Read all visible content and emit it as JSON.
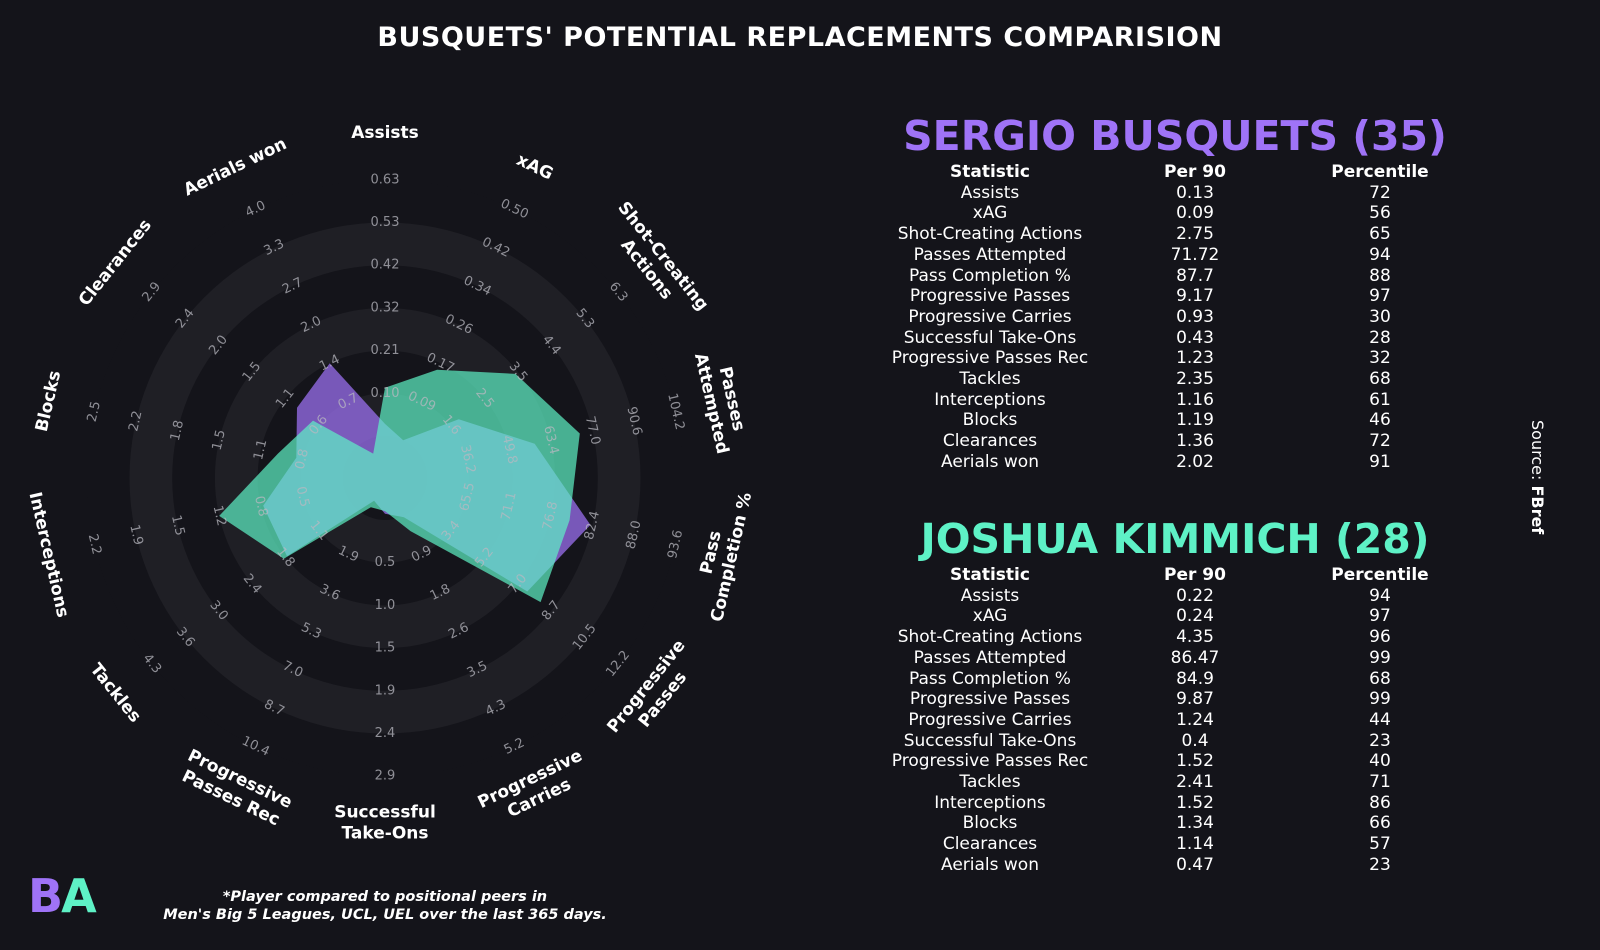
{
  "title": "BUSQUETS' POTENTIAL REPLACEMENTS COMPARISION",
  "source_prefix": "Source: ",
  "source_name": "FBref",
  "logo_b": "B",
  "logo_a": "A",
  "footnote_line1": "*Player compared to positional peers in",
  "footnote_line2": "Men's Big 5 Leagues, UCL, UEL over the last 365 days.",
  "colors": {
    "background": "#14141a",
    "ring": "#1f1f25",
    "player1": "#9f73f7",
    "player2": "#5ef2c6"
  },
  "table_headers": {
    "statistic": "Statistic",
    "per90": "Per 90",
    "percentile": "Percentile"
  },
  "players": [
    {
      "name": "SERGIO BUSQUETS (35)",
      "color": "#9f73f7",
      "stats": [
        {
          "statistic": "Assists",
          "per90": "0.13",
          "percentile": "72"
        },
        {
          "statistic": "xAG",
          "per90": "0.09",
          "percentile": "56"
        },
        {
          "statistic": "Shot-Creating Actions",
          "per90": "2.75",
          "percentile": "65"
        },
        {
          "statistic": "Passes Attempted",
          "per90": "71.72",
          "percentile": "94"
        },
        {
          "statistic": "Pass Completion %",
          "per90": "87.7",
          "percentile": "88"
        },
        {
          "statistic": "Progressive Passes",
          "per90": "9.17",
          "percentile": "97"
        },
        {
          "statistic": "Progressive Carries",
          "per90": "0.93",
          "percentile": "30"
        },
        {
          "statistic": "Successful Take-Ons",
          "per90": "0.43",
          "percentile": "28"
        },
        {
          "statistic": "Progressive Passes Rec",
          "per90": "1.23",
          "percentile": "32"
        },
        {
          "statistic": "Tackles",
          "per90": "2.35",
          "percentile": "68"
        },
        {
          "statistic": "Interceptions",
          "per90": "1.16",
          "percentile": "61"
        },
        {
          "statistic": "Blocks",
          "per90": "1.19",
          "percentile": "46"
        },
        {
          "statistic": "Clearances",
          "per90": "1.36",
          "percentile": "72"
        },
        {
          "statistic": "Aerials won",
          "per90": "2.02",
          "percentile": "91"
        }
      ]
    },
    {
      "name": "JOSHUA KIMMICH (28)",
      "color": "#5ef2c6",
      "stats": [
        {
          "statistic": "Assists",
          "per90": "0.22",
          "percentile": "94"
        },
        {
          "statistic": "xAG",
          "per90": "0.24",
          "percentile": "97"
        },
        {
          "statistic": "Shot-Creating Actions",
          "per90": "4.35",
          "percentile": "96"
        },
        {
          "statistic": "Passes Attempted",
          "per90": "86.47",
          "percentile": "99"
        },
        {
          "statistic": "Pass Completion %",
          "per90": "84.9",
          "percentile": "68"
        },
        {
          "statistic": "Progressive Passes",
          "per90": "9.87",
          "percentile": "99"
        },
        {
          "statistic": "Progressive Carries",
          "per90": "1.24",
          "percentile": "44"
        },
        {
          "statistic": "Successful Take-Ons",
          "per90": "0.4",
          "percentile": "23"
        },
        {
          "statistic": "Progressive Passes Rec",
          "per90": "1.52",
          "percentile": "40"
        },
        {
          "statistic": "Tackles",
          "per90": "2.41",
          "percentile": "71"
        },
        {
          "statistic": "Interceptions",
          "per90": "1.52",
          "percentile": "86"
        },
        {
          "statistic": "Blocks",
          "per90": "1.34",
          "percentile": "66"
        },
        {
          "statistic": "Clearances",
          "per90": "1.14",
          "percentile": "57"
        },
        {
          "statistic": "Aerials won",
          "per90": "0.47",
          "percentile": "23"
        }
      ]
    }
  ],
  "chart_data": {
    "type": "radar",
    "title": "BUSQUETS' POTENTIAL REPLACEMENTS COMPARISION",
    "axes": [
      {
        "label": "Assists",
        "min": 0.0,
        "max": 0.63,
        "ticks": [
          "0.10",
          "0.21",
          "0.32",
          "0.42",
          "0.53",
          "0.63"
        ]
      },
      {
        "label": "xAG",
        "min": 0.0,
        "max": 0.5,
        "ticks": [
          "0.09",
          "0.17",
          "0.26",
          "0.34",
          "0.42",
          "0.50"
        ]
      },
      {
        "label": "Shot-Creating Actions",
        "min": 0.0,
        "max": 6.3,
        "ticks": [
          "1.6",
          "2.5",
          "3.5",
          "4.4",
          "5.3",
          "6.3"
        ]
      },
      {
        "label": "Passes Attempted",
        "min": 0.0,
        "max": 104.2,
        "ticks": [
          "36.2",
          "49.8",
          "63.4",
          "77.0",
          "90.6",
          "104.2"
        ]
      },
      {
        "label": "Pass Completion %",
        "min": 0.0,
        "max": 93.6,
        "ticks": [
          "65.5",
          "71.1",
          "76.8",
          "82.4",
          "88.0",
          "93.6"
        ]
      },
      {
        "label": "Progressive Passes",
        "min": 0.0,
        "max": 12.2,
        "ticks": [
          "3.4",
          "5.2",
          "7.0",
          "8.7",
          "10.5",
          "12.2"
        ]
      },
      {
        "label": "Progressive Carries",
        "min": 0.0,
        "max": 5.2,
        "ticks": [
          "0.9",
          "1.8",
          "2.6",
          "3.5",
          "4.3",
          "5.2"
        ]
      },
      {
        "label": "Successful Take-Ons",
        "min": 0.0,
        "max": 2.9,
        "ticks": [
          "0.5",
          "1.0",
          "1.5",
          "1.9",
          "2.4",
          "2.9"
        ]
      },
      {
        "label": "Progressive Passes Rec",
        "min": 0.0,
        "max": 10.4,
        "ticks": [
          "1.9",
          "3.6",
          "5.3",
          "7.0",
          "8.7",
          "10.4"
        ]
      },
      {
        "label": "Tackles",
        "min": 0.0,
        "max": 4.3,
        "ticks": [
          "1.1",
          "1.8",
          "2.4",
          "3.0",
          "3.6",
          "4.3"
        ]
      },
      {
        "label": "Interceptions",
        "min": 0.0,
        "max": 2.2,
        "ticks": [
          "0.5",
          "0.8",
          "1.2",
          "1.5",
          "1.9",
          "2.2"
        ]
      },
      {
        "label": "Blocks",
        "min": 0.0,
        "max": 2.5,
        "ticks": [
          "0.8",
          "1.1",
          "1.5",
          "1.8",
          "2.2",
          "2.5"
        ]
      },
      {
        "label": "Clearances",
        "min": 0.0,
        "max": 2.9,
        "ticks": [
          "0.6",
          "1.1",
          "1.5",
          "2.0",
          "2.4",
          "2.9"
        ]
      },
      {
        "label": "Aerials won",
        "min": 0.0,
        "max": 4.0,
        "ticks": [
          "0.7",
          "1.4",
          "2.0",
          "2.7",
          "3.3",
          "4.0"
        ]
      }
    ],
    "axis_label_lines": [
      [
        "Assists"
      ],
      [
        "xAG"
      ],
      [
        "Shot-Creating",
        "Actions"
      ],
      [
        "Passes",
        "Attempted"
      ],
      [
        "Pass",
        "Completion %"
      ],
      [
        "Progressive",
        "Passes"
      ],
      [
        "Progressive",
        "Carries"
      ],
      [
        "Successful",
        "Take-Ons"
      ],
      [
        "Progressive",
        "Passes Rec"
      ],
      [
        "Tackles"
      ],
      [
        "Interceptions"
      ],
      [
        "Blocks"
      ],
      [
        "Clearances"
      ],
      [
        "Aerials won"
      ]
    ],
    "series": [
      {
        "name": "SERGIO BUSQUETS (35)",
        "color": "#9f73f7",
        "values": [
          0.13,
          0.09,
          2.75,
          71.72,
          87.7,
          9.17,
          0.93,
          0.43,
          1.23,
          2.35,
          1.16,
          1.19,
          1.36,
          2.02
        ]
      },
      {
        "name": "JOSHUA KIMMICH (28)",
        "color": "#5ef2c6",
        "values": [
          0.22,
          0.24,
          4.35,
          86.47,
          84.9,
          9.87,
          1.24,
          0.4,
          1.52,
          2.41,
          1.52,
          1.34,
          1.14,
          0.47
        ]
      }
    ]
  }
}
